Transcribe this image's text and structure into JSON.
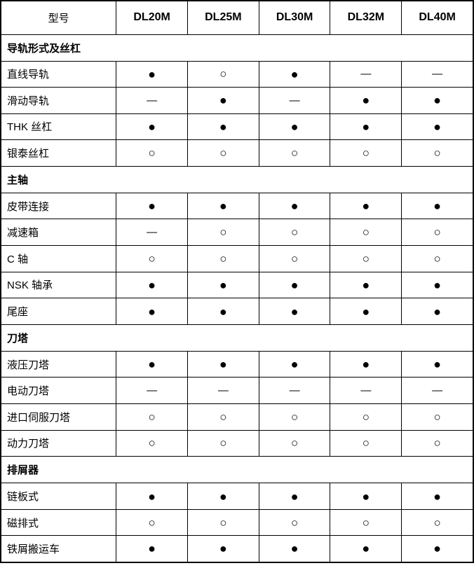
{
  "table": {
    "header": {
      "model_column_label": "型号",
      "models": [
        "DL20M",
        "DL25M",
        "DL30M",
        "DL32M",
        "DL40M"
      ]
    },
    "legend_symbols": {
      "filled": "●",
      "open": "○",
      "dash": "—"
    },
    "colors": {
      "border": "#000000",
      "background": "#ffffff",
      "text": "#000000"
    },
    "sections": [
      {
        "title": "导轨形式及丝杠",
        "rows": [
          {
            "label": "直线导轨",
            "values": [
              "filled",
              "open",
              "filled",
              "dash",
              "dash"
            ]
          },
          {
            "label": "滑动导轨",
            "values": [
              "dash",
              "filled",
              "dash",
              "filled",
              "filled"
            ]
          },
          {
            "label": "THK 丝杠",
            "values": [
              "filled",
              "filled",
              "filled",
              "filled",
              "filled"
            ]
          },
          {
            "label": "银泰丝杠",
            "values": [
              "open",
              "open",
              "open",
              "open",
              "open"
            ]
          }
        ]
      },
      {
        "title": "主轴",
        "rows": [
          {
            "label": "皮带连接",
            "values": [
              "filled",
              "filled",
              "filled",
              "filled",
              "filled"
            ]
          },
          {
            "label": "减速箱",
            "values": [
              "dash",
              "open",
              "open",
              "open",
              "open"
            ]
          },
          {
            "label": "C 轴",
            "values": [
              "open",
              "open",
              "open",
              "open",
              "open"
            ]
          },
          {
            "label": "NSK 轴承",
            "values": [
              "filled",
              "filled",
              "filled",
              "filled",
              "filled"
            ]
          },
          {
            "label": "尾座",
            "values": [
              "filled",
              "filled",
              "filled",
              "filled",
              "filled"
            ]
          }
        ]
      },
      {
        "title": "刀塔",
        "rows": [
          {
            "label": "液压刀塔",
            "values": [
              "filled",
              "filled",
              "filled",
              "filled",
              "filled"
            ]
          },
          {
            "label": "电动刀塔",
            "values": [
              "dash",
              "dash",
              "dash",
              "dash",
              "dash"
            ]
          },
          {
            "label": "进口伺服刀塔",
            "values": [
              "open",
              "open",
              "open",
              "open",
              "open"
            ]
          },
          {
            "label": "动力刀塔",
            "values": [
              "open",
              "open",
              "open",
              "open",
              "open"
            ]
          }
        ]
      },
      {
        "title": "排屑器",
        "rows": [
          {
            "label": "链板式",
            "values": [
              "filled",
              "filled",
              "filled",
              "filled",
              "filled"
            ]
          },
          {
            "label": "磁排式",
            "values": [
              "open",
              "open",
              "open",
              "open",
              "open"
            ]
          },
          {
            "label": "铁屑搬运车",
            "values": [
              "filled",
              "filled",
              "filled",
              "filled",
              "filled"
            ]
          }
        ]
      }
    ]
  }
}
